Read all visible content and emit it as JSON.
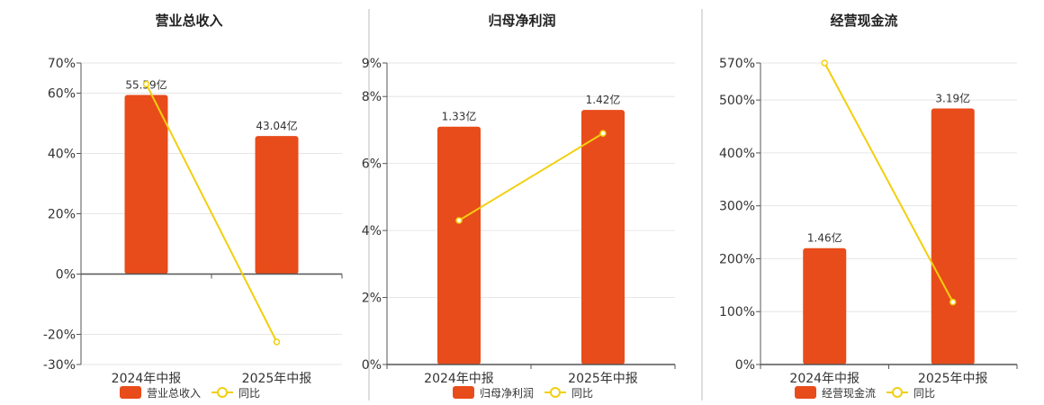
{
  "colors": {
    "bar": "#E84C1A",
    "line": "#F2CF0E",
    "grid": "#E6E6E6",
    "axis": "#555555",
    "divider": "#BBBBBB"
  },
  "chart_data": [
    {
      "type": "bar",
      "title": "营业总收入",
      "categories": [
        "2024年中报",
        "2025年中报"
      ],
      "series": [
        {
          "name": "营业总收入",
          "kind": "bar",
          "values": [
            59.4,
            45.8
          ],
          "labels": [
            "55.59亿",
            "43.04亿"
          ]
        },
        {
          "name": "同比",
          "kind": "line",
          "values": [
            63.0,
            -22.5
          ]
        }
      ],
      "ylim": [
        -30,
        70
      ],
      "yticks": [
        70,
        60,
        40,
        20,
        0,
        -20,
        -30
      ],
      "ytick_labels": [
        "70%",
        "60%",
        "40%",
        "20%",
        "0%",
        "-20%",
        "-30%"
      ],
      "grid": true,
      "legend": "bottom"
    },
    {
      "type": "bar",
      "title": "归母净利润",
      "categories": [
        "2024年中报",
        "2025年中报"
      ],
      "series": [
        {
          "name": "归母净利润",
          "kind": "bar",
          "values": [
            7.1,
            7.6
          ],
          "labels": [
            "1.33亿",
            "1.42亿"
          ]
        },
        {
          "name": "同比",
          "kind": "line",
          "values": [
            4.3,
            6.9
          ]
        }
      ],
      "ylim": [
        0,
        9
      ],
      "yticks": [
        9,
        8,
        6,
        4,
        2,
        0
      ],
      "ytick_labels": [
        "9%",
        "8%",
        "6%",
        "4%",
        "2%",
        "0%"
      ],
      "grid": true,
      "legend": "bottom"
    },
    {
      "type": "bar",
      "title": "经营现金流",
      "categories": [
        "2024年中报",
        "2025年中报"
      ],
      "series": [
        {
          "name": "经营现金流",
          "kind": "bar",
          "values": [
            220,
            484
          ],
          "labels": [
            "1.46亿",
            "3.19亿"
          ]
        },
        {
          "name": "同比",
          "kind": "line",
          "values": [
            570,
            118
          ]
        }
      ],
      "ylim": [
        0,
        570
      ],
      "yticks": [
        570,
        500,
        400,
        300,
        200,
        100,
        0
      ],
      "ytick_labels": [
        "570%",
        "500%",
        "400%",
        "300%",
        "200%",
        "100%",
        "0%"
      ],
      "grid": true,
      "legend": "bottom"
    }
  ]
}
